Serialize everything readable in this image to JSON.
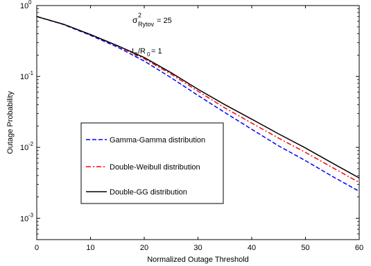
{
  "chart_data": {
    "type": "line",
    "title": "",
    "xlabel": "Normalized Outage Threshold",
    "ylabel": "Outage Probability",
    "xlim": [
      0,
      60
    ],
    "ylim": [
      0.0005,
      1
    ],
    "yscale": "log",
    "grid": false,
    "legend_position": "center-left",
    "x_ticks": [
      0,
      10,
      20,
      30,
      40,
      50,
      60
    ],
    "x_tick_labels": [
      "0",
      "10",
      "20",
      "30",
      "40",
      "50",
      "60"
    ],
    "y_ticks": [
      0.001,
      0.01,
      0.1,
      1
    ],
    "y_tick_bases": [
      "10",
      "10",
      "10",
      "10"
    ],
    "y_tick_exponents": [
      "-3",
      "-2",
      "-1",
      "0"
    ],
    "annotations": {
      "sigma_symbol": "σ",
      "sigma_sup": "2",
      "sigma_sub": "Rytov",
      "sigma_value": " = 25",
      "ratio_i": "I",
      "ratio_i_sub": "0",
      "ratio_slash_r": "/R",
      "ratio_r_sub": "0",
      "ratio_value": " = 1"
    },
    "series": [
      {
        "name": "Gamma-Gamma distribution",
        "color": "#0000ff",
        "dash": "dash",
        "x": [
          0,
          5,
          10,
          15,
          20,
          25,
          30,
          35,
          40,
          45,
          50,
          55,
          60
        ],
        "y": [
          0.7,
          0.54,
          0.38,
          0.26,
          0.165,
          0.096,
          0.054,
          0.031,
          0.018,
          0.0105,
          0.0065,
          0.0039,
          0.0024
        ]
      },
      {
        "name": "Double-Weibull distribution",
        "color": "#ff0000",
        "dash": "dashdot",
        "x": [
          0,
          5,
          10,
          15,
          20,
          25,
          30,
          35,
          40,
          45,
          50,
          55,
          60
        ],
        "y": [
          0.7,
          0.545,
          0.39,
          0.27,
          0.178,
          0.108,
          0.062,
          0.036,
          0.022,
          0.0135,
          0.0085,
          0.0052,
          0.0032
        ]
      },
      {
        "name": "Double-GG distribution",
        "color": "#000000",
        "dash": "solid",
        "x": [
          0,
          5,
          10,
          15,
          20,
          25,
          30,
          35,
          40,
          45,
          50,
          55,
          60
        ],
        "y": [
          0.7,
          0.545,
          0.39,
          0.272,
          0.185,
          0.113,
          0.066,
          0.04,
          0.025,
          0.0155,
          0.0098,
          0.006,
          0.0037
        ]
      }
    ]
  }
}
